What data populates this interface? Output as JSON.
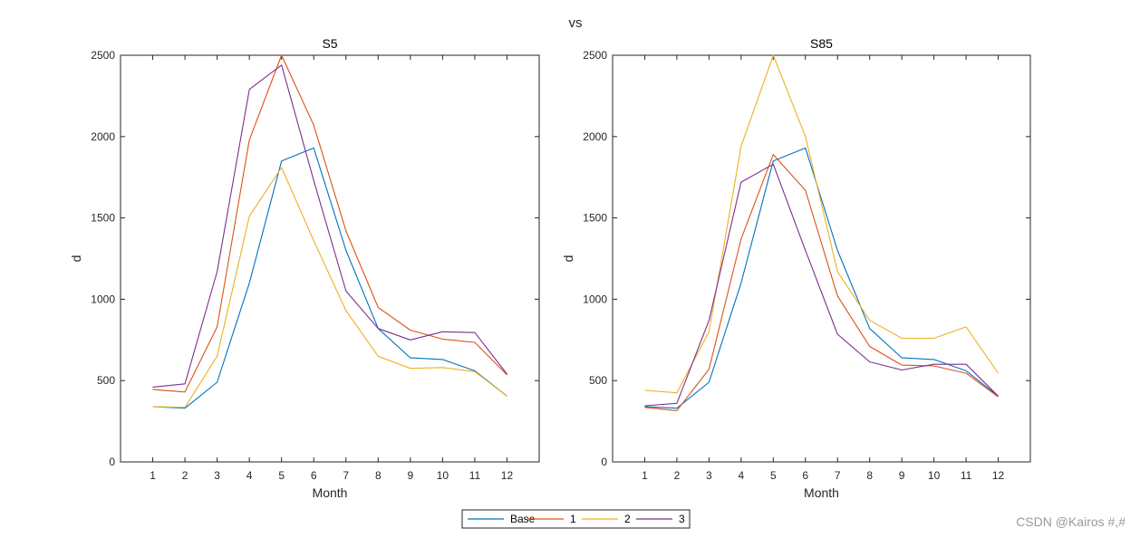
{
  "figure_title": "vs",
  "watermark": "CSDN @Kairos #,#",
  "legend": {
    "entries": [
      {
        "label": "Base",
        "color": "#0072BD"
      },
      {
        "label": "1",
        "color": "#D95319"
      },
      {
        "label": "2",
        "color": "#EDB120"
      },
      {
        "label": "3",
        "color": "#7E2F8E"
      }
    ]
  },
  "chart_data": [
    {
      "type": "line",
      "title": "S5",
      "xlabel": "Month",
      "ylabel": "d",
      "x": [
        1,
        2,
        3,
        4,
        5,
        6,
        7,
        8,
        9,
        10,
        11,
        12
      ],
      "xlim": [
        0,
        13
      ],
      "ylim": [
        0,
        2500
      ],
      "yticks": [
        0,
        500,
        1000,
        1500,
        2000,
        2500
      ],
      "series": [
        {
          "name": "Base",
          "color": "#0072BD",
          "values": [
            340,
            330,
            490,
            1100,
            1850,
            1930,
            1300,
            820,
            640,
            630,
            560,
            405
          ]
        },
        {
          "name": "1",
          "color": "#D95319",
          "values": [
            445,
            430,
            830,
            1980,
            2500,
            2070,
            1420,
            950,
            810,
            755,
            735,
            535
          ]
        },
        {
          "name": "2",
          "color": "#EDB120",
          "values": [
            340,
            335,
            650,
            1510,
            1810,
            1360,
            930,
            650,
            575,
            580,
            555,
            405
          ]
        },
        {
          "name": "3",
          "color": "#7E2F8E",
          "values": [
            460,
            480,
            1170,
            2290,
            2440,
            1730,
            1050,
            820,
            750,
            800,
            795,
            540
          ]
        }
      ]
    },
    {
      "type": "line",
      "title": "S85",
      "xlabel": "Month",
      "ylabel": "d",
      "x": [
        1,
        2,
        3,
        4,
        5,
        6,
        7,
        8,
        9,
        10,
        11,
        12
      ],
      "xlim": [
        0,
        13
      ],
      "ylim": [
        0,
        2500
      ],
      "yticks": [
        0,
        500,
        1000,
        1500,
        2000,
        2500
      ],
      "series": [
        {
          "name": "Base",
          "color": "#0072BD",
          "values": [
            340,
            330,
            490,
            1100,
            1850,
            1930,
            1300,
            820,
            640,
            630,
            560,
            405
          ]
        },
        {
          "name": "1",
          "color": "#D95319",
          "values": [
            335,
            315,
            570,
            1370,
            1890,
            1670,
            1020,
            710,
            595,
            590,
            545,
            400
          ]
        },
        {
          "name": "2",
          "color": "#EDB120",
          "values": [
            440,
            425,
            800,
            1940,
            2500,
            2000,
            1170,
            870,
            760,
            760,
            830,
            545
          ]
        },
        {
          "name": "3",
          "color": "#7E2F8E",
          "values": [
            345,
            360,
            870,
            1720,
            1830,
            1300,
            785,
            615,
            565,
            600,
            600,
            405
          ]
        }
      ]
    }
  ]
}
